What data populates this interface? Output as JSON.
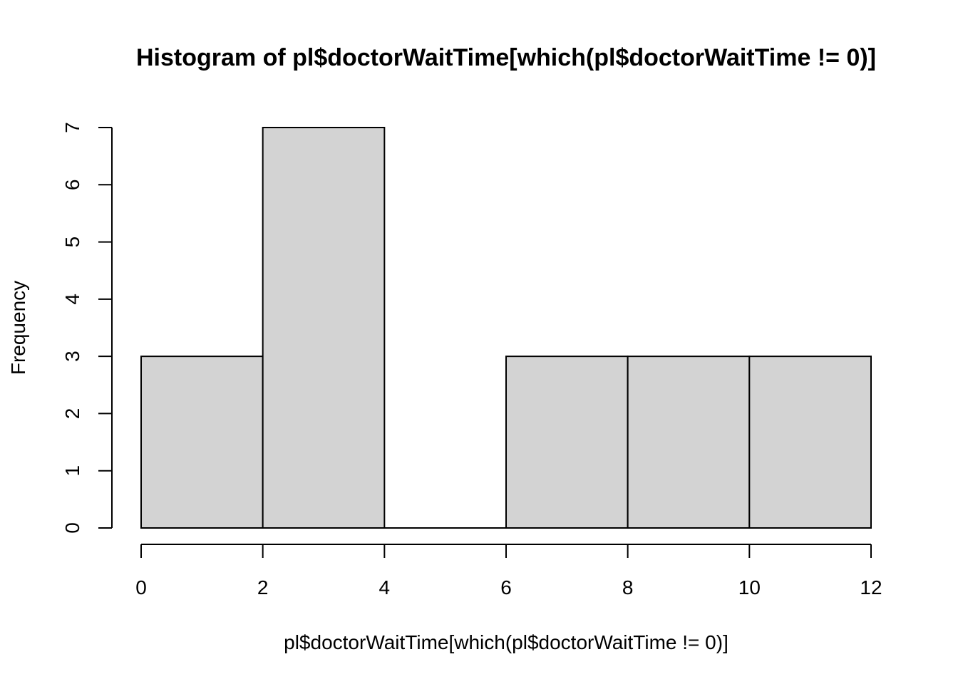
{
  "chart_data": {
    "type": "bar",
    "title": "Histogram of pl$doctorWaitTime[which(pl$doctorWaitTime != 0)]",
    "xlabel": "pl$doctorWaitTime[which(pl$doctorWaitTime != 0)]",
    "ylabel": "Frequency",
    "bins": [
      {
        "x0": 0,
        "x1": 2,
        "count": 3
      },
      {
        "x0": 2,
        "x1": 4,
        "count": 7
      },
      {
        "x0": 4,
        "x1": 6,
        "count": 0
      },
      {
        "x0": 6,
        "x1": 8,
        "count": 3
      },
      {
        "x0": 8,
        "x1": 10,
        "count": 3
      },
      {
        "x0": 10,
        "x1": 12,
        "count": 3
      }
    ],
    "xlim": [
      0,
      12
    ],
    "ylim": [
      0,
      7
    ],
    "x_ticks": [
      "0",
      "2",
      "4",
      "6",
      "8",
      "10",
      "12"
    ],
    "y_ticks": [
      "0",
      "1",
      "2",
      "3",
      "4",
      "5",
      "6",
      "7"
    ],
    "bar_color": "#d3d3d3",
    "grid": false
  }
}
